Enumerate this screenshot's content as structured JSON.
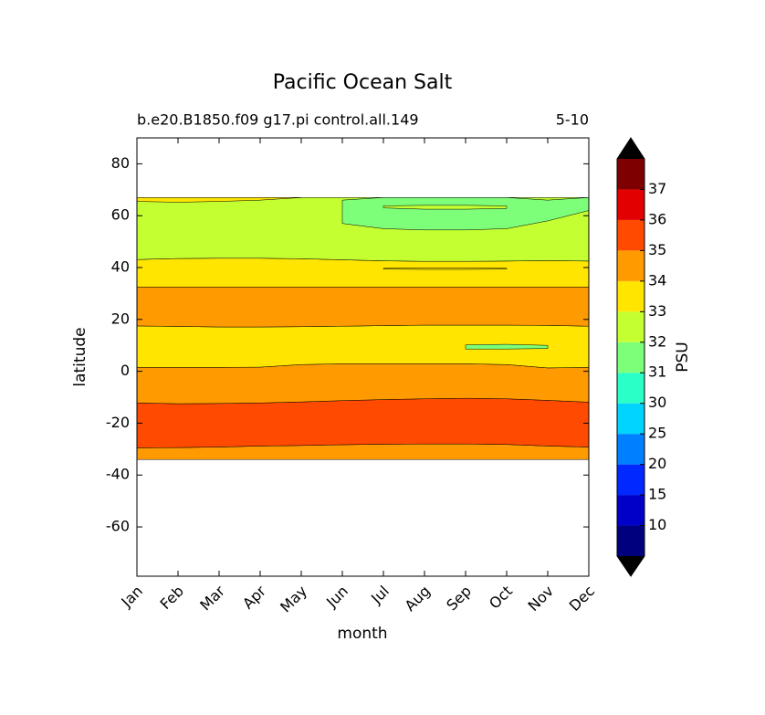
{
  "chart_data": {
    "type": "contourf",
    "title": "Pacific Ocean Salt",
    "subtitle_left": "b.e20.B1850.f09 g17.pi control.all.149",
    "subtitle_right": "5-10",
    "xlabel": "month",
    "ylabel": "latitude",
    "categories": [
      "Jan",
      "Feb",
      "Mar",
      "Apr",
      "May",
      "Jun",
      "Jul",
      "Aug",
      "Sep",
      "Oct",
      "Nov",
      "Dec"
    ],
    "ylim": [
      -79,
      90
    ],
    "yticks": [
      -60,
      -40,
      -20,
      0,
      20,
      40,
      60,
      80
    ],
    "series": [
      {
        "color": "#ff9a00",
        "lower": [
          -34,
          -34,
          -34,
          -34,
          -34,
          -34,
          -34,
          -34,
          -34,
          -34,
          -34,
          -34
        ],
        "upper": [
          -29.5,
          -29.4,
          -29.2,
          -28.8,
          -28.6,
          -28.3,
          -28.1,
          -28,
          -28,
          -28.2,
          -28.8,
          -29.2
        ]
      },
      {
        "color": "#ff4a00",
        "lower": [
          -29.5,
          -29.4,
          -29.2,
          -28.8,
          -28.6,
          -28.3,
          -28.1,
          -28,
          -28,
          -28.2,
          -28.8,
          -29.2
        ],
        "upper": [
          -12.2,
          -12.5,
          -12.4,
          -12.2,
          -11.8,
          -11.3,
          -10.9,
          -10.6,
          -10.4,
          -10.6,
          -11.2,
          -11.9
        ]
      },
      {
        "color": "#ff9a00",
        "lower": [
          -12.2,
          -12.5,
          -12.4,
          -12.2,
          -11.8,
          -11.3,
          -10.9,
          -10.6,
          -10.4,
          -10.6,
          -11.2,
          -11.9
        ],
        "upper": [
          1.5,
          1.5,
          1.5,
          1.6,
          2.6,
          2.9,
          2.9,
          2.9,
          2.9,
          2.6,
          1.3,
          1.5
        ]
      },
      {
        "color": "#ffe500",
        "lower": [
          1.5,
          1.5,
          1.5,
          1.6,
          2.6,
          2.9,
          2.9,
          2.9,
          2.9,
          2.6,
          1.3,
          1.5
        ],
        "upper": [
          17.5,
          17.3,
          17.1,
          17.1,
          17.2,
          17.4,
          17.6,
          17.8,
          17.8,
          17.8,
          17.7,
          17.4
        ]
      },
      {
        "color": "#ff9a00",
        "lower": [
          17.5,
          17.3,
          17.1,
          17.1,
          17.2,
          17.4,
          17.6,
          17.8,
          17.8,
          17.8,
          17.7,
          17.4
        ],
        "upper": [
          32.5,
          32.5,
          32.5,
          32.5,
          32.5,
          32.5,
          32.5,
          32.5,
          32.5,
          32.5,
          32.5,
          32.5
        ]
      },
      {
        "color": "#ffe500",
        "lower": [
          32.5,
          32.5,
          32.5,
          32.5,
          32.5,
          32.5,
          32.5,
          32.5,
          32.5,
          32.5,
          32.5,
          32.5
        ],
        "upper": [
          43.1,
          43.5,
          43.6,
          43.6,
          43.4,
          43,
          42.6,
          42.4,
          42.4,
          42.5,
          42.7,
          42.5
        ]
      },
      {
        "color": "#c4ff32",
        "lower": [
          43.1,
          43.5,
          43.6,
          43.6,
          43.4,
          43,
          42.6,
          42.4,
          42.4,
          42.5,
          42.7,
          42.5
        ],
        "upper": [
          67,
          67,
          67,
          67,
          67,
          67,
          67,
          67,
          67,
          67,
          67,
          67
        ]
      },
      {
        "color": "#ffe500",
        "lower": [
          65.5,
          65.2,
          65.5,
          66,
          67,
          null,
          null,
          null,
          null,
          null,
          null,
          null
        ],
        "upper": [
          67,
          67,
          67,
          67,
          67,
          null,
          null,
          null,
          null,
          null,
          null,
          null
        ]
      },
      {
        "color": "#7dff7a",
        "lower": [
          null,
          null,
          null,
          null,
          null,
          57,
          55,
          54.5,
          54.5,
          55,
          58,
          62
        ],
        "upper": [
          null,
          null,
          null,
          null,
          null,
          66,
          67,
          67,
          67,
          67,
          66,
          67
        ]
      },
      {
        "color": "#c4ff32",
        "lower": [
          null,
          null,
          null,
          null,
          null,
          null,
          63,
          62.5,
          62.5,
          62.8,
          null,
          null
        ],
        "upper": [
          null,
          null,
          null,
          null,
          null,
          null,
          63.8,
          64,
          64,
          63.8,
          null,
          null
        ]
      },
      {
        "color": "#ffe500",
        "lower": [
          null,
          null,
          null,
          null,
          null,
          null,
          39.4,
          39.3,
          39.3,
          39.4,
          null,
          null
        ],
        "upper": [
          null,
          null,
          null,
          null,
          null,
          null,
          39.7,
          39.9,
          39.9,
          39.7,
          null,
          null
        ]
      },
      {
        "color": "#7dff7a",
        "lower": [
          null,
          null,
          null,
          null,
          null,
          null,
          null,
          null,
          8.6,
          8.6,
          8.8,
          null
        ],
        "upper": [
          null,
          null,
          null,
          null,
          null,
          null,
          null,
          null,
          10.2,
          10.4,
          10,
          null
        ]
      }
    ],
    "colorbar": {
      "label": "PSU",
      "ticks": [
        10,
        15,
        20,
        25,
        30,
        31,
        32,
        33,
        34,
        35,
        36,
        37
      ],
      "colors": [
        "#00007f",
        "#0000c8",
        "#0028ff",
        "#0080ff",
        "#00d4ff",
        "#2bffc8",
        "#7dff7a",
        "#c4ff32",
        "#ffe500",
        "#ff9a00",
        "#ff4a00",
        "#e30000",
        "#7f0000"
      ],
      "extend_color": "#000000"
    }
  }
}
